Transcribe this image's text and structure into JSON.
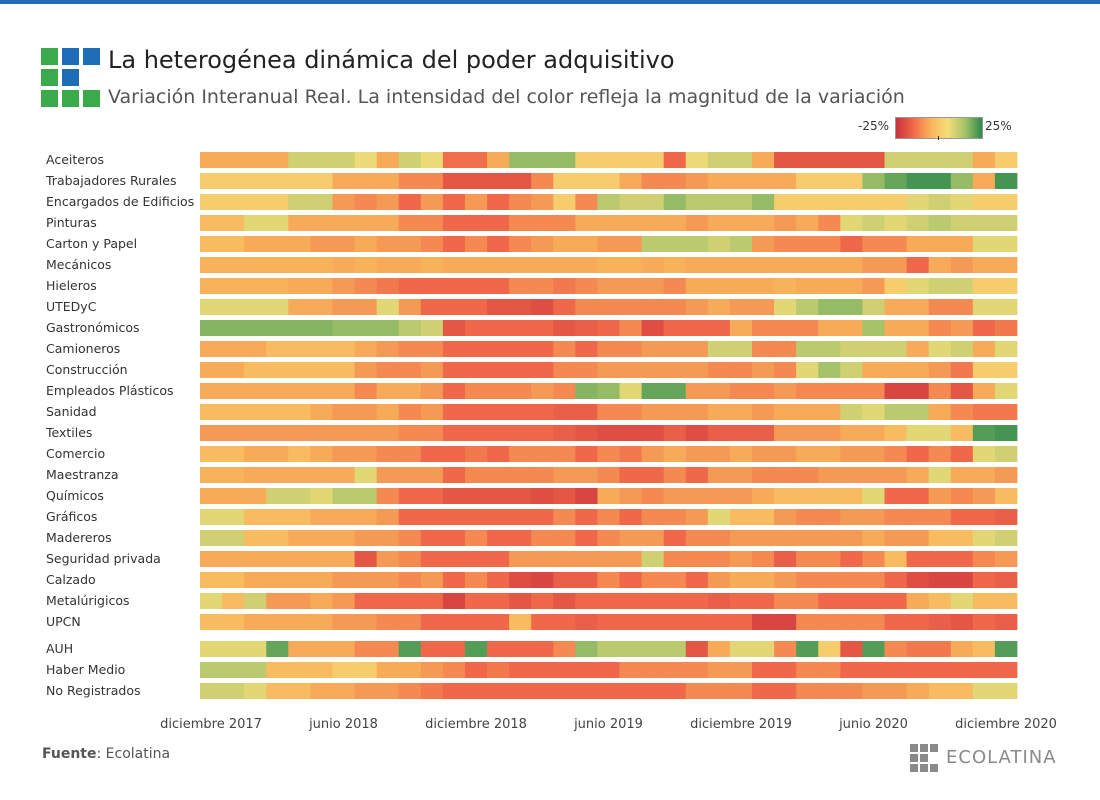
{
  "header": {
    "title": "La heterogénea dinámica del poder adquisitivo",
    "subtitle": "Variación Interanual Real. La intensidad del color refleja la magnitud de la variación"
  },
  "legend": {
    "min_label": "-25%",
    "max_label": "25%"
  },
  "footer": {
    "source_label": "Fuente",
    "source_value": ": Ecolatina",
    "brand": "ECOLATINA"
  },
  "colors": {
    "brand_blue": "#1f6db5",
    "brand_green": "#3aaa4a",
    "scale": [
      "#c8303a",
      "#f0684a",
      "#f8b35a",
      "#f6dd78",
      "#a7c36a",
      "#2b8a4c"
    ]
  },
  "chart_data": {
    "type": "heatmap",
    "title": "La heterogénea dinámica del poder adquisitivo",
    "subtitle": "Variación Interanual Real. La intensidad del color refleja la magnitud de la variación",
    "color_range": [
      -25,
      25
    ],
    "legend_position": "top-right",
    "months": 37,
    "x_tick_labels": [
      "diciembre 2017",
      "junio 2018",
      "diciembre 2018",
      "junio 2019",
      "diciembre 2019",
      "junio 2020",
      "diciembre 2020"
    ],
    "rows": [
      {
        "name": "Aceiteros",
        "values": [
          -4,
          -4,
          -4,
          -4,
          6,
          6,
          6,
          3,
          -4,
          6,
          3,
          -11,
          -11,
          -4,
          12,
          12,
          12,
          0,
          0,
          0,
          0,
          -12,
          3,
          6,
          6,
          -4,
          -16,
          -16,
          -16,
          -16,
          -16,
          6,
          6,
          6,
          6,
          -4,
          0
        ]
      },
      {
        "name": "Trabajadores Rurales",
        "values": [
          0,
          0,
          0,
          0,
          0,
          0,
          -4,
          -4,
          -4,
          -8,
          -8,
          -16,
          -16,
          -16,
          -16,
          -8,
          0,
          0,
          0,
          -4,
          -8,
          -8,
          -6,
          -4,
          -4,
          -4,
          -4,
          0,
          0,
          0,
          12,
          18,
          22,
          22,
          12,
          -4,
          22
        ]
      },
      {
        "name": "Encargados de Edificios",
        "values": [
          0,
          0,
          0,
          0,
          6,
          6,
          -6,
          -8,
          -6,
          -12,
          -6,
          -12,
          -6,
          -12,
          -8,
          -6,
          0,
          -8,
          8,
          6,
          6,
          12,
          8,
          8,
          8,
          12,
          0,
          0,
          0,
          0,
          0,
          0,
          4,
          6,
          4,
          0,
          0
        ]
      },
      {
        "name": "Pinturas",
        "values": [
          -2,
          -2,
          4,
          4,
          -4,
          -4,
          -4,
          -4,
          -4,
          -8,
          -8,
          -12,
          -12,
          -12,
          -8,
          -8,
          -8,
          -4,
          -4,
          -4,
          -4,
          -4,
          -6,
          -4,
          -4,
          -4,
          -6,
          -4,
          -8,
          4,
          6,
          4,
          6,
          8,
          6,
          6,
          6
        ]
      },
      {
        "name": "Carton y Papel",
        "values": [
          -2,
          -2,
          -4,
          -4,
          -4,
          -6,
          -6,
          -4,
          -6,
          -6,
          -8,
          -12,
          -8,
          -12,
          -8,
          -6,
          -4,
          -4,
          -6,
          -6,
          8,
          8,
          8,
          6,
          8,
          -6,
          -8,
          -8,
          -8,
          -12,
          -8,
          -8,
          -4,
          -4,
          -4,
          4,
          4
        ]
      },
      {
        "name": "Mecánicos",
        "values": [
          -3,
          -3,
          -3,
          -3,
          -3,
          -3,
          -4,
          -3,
          -4,
          -4,
          -3,
          -4,
          -4,
          -4,
          -4,
          -4,
          -4,
          -4,
          -3,
          -3,
          -4,
          -3,
          -4,
          -4,
          -4,
          -4,
          -4,
          -4,
          -4,
          -4,
          -6,
          -6,
          -12,
          -4,
          -6,
          -4,
          -4
        ]
      },
      {
        "name": "Hieleros",
        "values": [
          -3,
          -3,
          -3,
          -3,
          -4,
          -4,
          -6,
          -8,
          -10,
          -12,
          -12,
          -12,
          -12,
          -12,
          -8,
          -8,
          -10,
          -8,
          -6,
          -6,
          -6,
          -8,
          -4,
          -4,
          -4,
          -4,
          -3,
          -4,
          -4,
          -4,
          -6,
          0,
          4,
          6,
          6,
          0,
          0
        ]
      },
      {
        "name": "UTEDyC",
        "values": [
          4,
          4,
          4,
          4,
          -4,
          -4,
          -6,
          -6,
          4,
          -6,
          -12,
          -12,
          -12,
          -16,
          -16,
          -18,
          -12,
          -8,
          -8,
          -8,
          -8,
          -8,
          -6,
          -4,
          -6,
          -6,
          4,
          8,
          12,
          12,
          6,
          -4,
          -4,
          -8,
          -8,
          4,
          4
        ]
      },
      {
        "name": "Gastronómicos",
        "values": [
          14,
          14,
          14,
          14,
          14,
          14,
          12,
          12,
          12,
          8,
          6,
          -16,
          -12,
          -12,
          -12,
          -12,
          -16,
          -14,
          -12,
          -8,
          -18,
          -12,
          -12,
          -12,
          -4,
          -8,
          -8,
          -8,
          -4,
          -4,
          10,
          -4,
          -4,
          -8,
          -6,
          -12,
          -10
        ]
      },
      {
        "name": "Camioneros",
        "values": [
          -4,
          -4,
          -4,
          -2,
          -2,
          -2,
          -2,
          -4,
          -6,
          -8,
          -8,
          -12,
          -12,
          -12,
          -12,
          -12,
          -8,
          -12,
          -8,
          -8,
          -6,
          -6,
          -6,
          6,
          6,
          -8,
          -8,
          8,
          8,
          6,
          6,
          6,
          -4,
          4,
          6,
          -4,
          4
        ]
      },
      {
        "name": "Construcción",
        "values": [
          -4,
          -4,
          -2,
          -2,
          -2,
          -2,
          -2,
          -6,
          -8,
          -8,
          -6,
          -12,
          -12,
          -12,
          -12,
          -12,
          -8,
          -8,
          -6,
          -6,
          -6,
          -6,
          -6,
          -8,
          -8,
          -6,
          -8,
          4,
          10,
          6,
          -4,
          -4,
          -4,
          -6,
          -10,
          0,
          0
        ]
      },
      {
        "name": "Empleados Plásticos",
        "values": [
          -4,
          -4,
          -4,
          -4,
          -4,
          -4,
          -4,
          -8,
          -4,
          -4,
          -6,
          -12,
          -8,
          -8,
          -8,
          -6,
          -8,
          14,
          12,
          4,
          18,
          18,
          -6,
          -6,
          -8,
          -8,
          -6,
          -8,
          -8,
          -8,
          -8,
          -20,
          -20,
          -8,
          -16,
          -4,
          4
        ]
      },
      {
        "name": "Sanidad",
        "values": [
          -2,
          -2,
          -2,
          -2,
          -2,
          -4,
          -6,
          -6,
          -4,
          -8,
          -6,
          -12,
          -12,
          -12,
          -12,
          -12,
          -14,
          -14,
          -8,
          -8,
          -6,
          -6,
          -6,
          -4,
          -4,
          -6,
          -4,
          -4,
          -4,
          6,
          4,
          8,
          8,
          -4,
          -8,
          -10,
          -10
        ]
      },
      {
        "name": "Textiles",
        "values": [
          -6,
          -6,
          -6,
          -6,
          -6,
          -6,
          -6,
          -6,
          -6,
          -8,
          -8,
          -12,
          -12,
          -12,
          -12,
          -12,
          -14,
          -16,
          -18,
          -18,
          -18,
          -14,
          -18,
          -14,
          -14,
          -14,
          -6,
          -6,
          -6,
          -4,
          -4,
          -2,
          4,
          4,
          -2,
          20,
          22
        ]
      },
      {
        "name": "Comercio",
        "values": [
          -2,
          -2,
          -4,
          -4,
          -2,
          -4,
          -6,
          -6,
          -8,
          -8,
          -12,
          -12,
          -10,
          -12,
          -8,
          -8,
          -8,
          -12,
          -8,
          -10,
          -6,
          -4,
          -6,
          -6,
          -4,
          -6,
          -6,
          -4,
          -4,
          -6,
          -6,
          -8,
          -12,
          -8,
          -12,
          4,
          6
        ]
      },
      {
        "name": "Maestranza",
        "values": [
          -3,
          -3,
          -4,
          -4,
          -4,
          -4,
          -4,
          4,
          -6,
          -6,
          -6,
          -12,
          -8,
          -8,
          -8,
          -8,
          -6,
          -6,
          -8,
          -12,
          -12,
          -8,
          -12,
          -6,
          -6,
          -8,
          -8,
          -8,
          -6,
          -6,
          -6,
          -6,
          -4,
          4,
          -4,
          -4,
          -6
        ]
      },
      {
        "name": "Químicos",
        "values": [
          -4,
          -4,
          -4,
          6,
          6,
          4,
          8,
          8,
          -8,
          -12,
          -12,
          -16,
          -16,
          -16,
          -16,
          -18,
          -16,
          -20,
          -4,
          -6,
          -8,
          -6,
          -6,
          -6,
          -6,
          -4,
          -2,
          -2,
          -2,
          -2,
          4,
          -12,
          -12,
          -6,
          -8,
          -6,
          -2
        ]
      },
      {
        "name": "Gráficos",
        "values": [
          4,
          4,
          -2,
          -2,
          -2,
          -4,
          -4,
          -4,
          -6,
          -12,
          -12,
          -12,
          -12,
          -12,
          -12,
          -12,
          -8,
          -12,
          -8,
          -12,
          -8,
          -8,
          -6,
          4,
          -2,
          -2,
          -6,
          -8,
          -8,
          -6,
          -6,
          -8,
          -8,
          -8,
          -12,
          -12,
          -14
        ]
      },
      {
        "name": "Madereros",
        "values": [
          6,
          6,
          -2,
          -2,
          -4,
          -4,
          -4,
          -6,
          -6,
          -8,
          -12,
          -12,
          -8,
          -12,
          -12,
          -8,
          -8,
          -12,
          -8,
          -6,
          -6,
          -12,
          -8,
          -8,
          -6,
          -6,
          -6,
          -6,
          -6,
          -6,
          -4,
          -6,
          -6,
          -2,
          -2,
          4,
          6
        ]
      },
      {
        "name": "Seguridad privada",
        "values": [
          -4,
          -4,
          -4,
          -4,
          -4,
          -4,
          -4,
          -16,
          -6,
          -8,
          -12,
          -12,
          -12,
          -12,
          -6,
          -6,
          -6,
          -6,
          -6,
          -6,
          6,
          -8,
          -8,
          -8,
          -6,
          -8,
          -14,
          -8,
          -8,
          -12,
          -8,
          -2,
          -12,
          -12,
          -12,
          -8,
          -6
        ]
      },
      {
        "name": "Calzado",
        "values": [
          -2,
          -2,
          -4,
          -4,
          -4,
          -4,
          -6,
          -6,
          -6,
          -8,
          -6,
          -12,
          -8,
          -12,
          -18,
          -20,
          -14,
          -14,
          -8,
          -12,
          -8,
          -8,
          -12,
          -6,
          -4,
          -4,
          -6,
          -8,
          -8,
          -8,
          -8,
          -12,
          -18,
          -20,
          -20,
          -12,
          -14
        ]
      },
      {
        "name": "Metalúrigicos",
        "values": [
          4,
          -2,
          6,
          -6,
          -6,
          -4,
          -6,
          -12,
          -12,
          -12,
          -12,
          -20,
          -12,
          -12,
          -16,
          -12,
          -16,
          -12,
          -12,
          -12,
          -12,
          -12,
          -12,
          -14,
          -12,
          -12,
          -8,
          -8,
          -12,
          -12,
          -12,
          -12,
          -4,
          -2,
          4,
          -2,
          -2
        ]
      },
      {
        "name": "UPCN",
        "values": [
          -2,
          -2,
          -4,
          -4,
          -4,
          -4,
          -6,
          -6,
          -8,
          -8,
          -12,
          -12,
          -12,
          -12,
          -2,
          -12,
          -12,
          -14,
          -12,
          -12,
          -12,
          -12,
          -12,
          -12,
          -12,
          -20,
          -20,
          -8,
          -8,
          -8,
          -8,
          -12,
          -12,
          -14,
          -16,
          -12,
          -14
        ]
      },
      {
        "name": "AUH",
        "values": [
          4,
          4,
          4,
          18,
          -4,
          -4,
          -4,
          -8,
          -8,
          20,
          -12,
          -12,
          20,
          -12,
          -12,
          -12,
          -8,
          12,
          8,
          8,
          8,
          8,
          -16,
          -4,
          4,
          4,
          -8,
          20,
          0,
          -16,
          20,
          -8,
          -10,
          -10,
          -4,
          -2,
          20
        ]
      },
      {
        "name": "Haber Medio",
        "values": [
          8,
          8,
          8,
          -2,
          -2,
          -2,
          0,
          0,
          -4,
          -4,
          -6,
          -8,
          -12,
          -10,
          -12,
          -12,
          -12,
          -12,
          -12,
          -8,
          -8,
          -8,
          -8,
          -6,
          -6,
          -12,
          -12,
          -8,
          -8,
          -12,
          -12,
          -12,
          -12,
          -12,
          -12,
          -12,
          -12
        ]
      },
      {
        "name": "No Registrados",
        "values": [
          6,
          6,
          4,
          -2,
          -2,
          -4,
          -4,
          -6,
          -6,
          -8,
          -10,
          -12,
          -12,
          -12,
          -12,
          -12,
          -12,
          -12,
          -12,
          -12,
          -12,
          -12,
          -8,
          -8,
          -8,
          -12,
          -12,
          -8,
          -8,
          -8,
          -6,
          -6,
          -4,
          -2,
          -2,
          4,
          4
        ]
      }
    ]
  }
}
